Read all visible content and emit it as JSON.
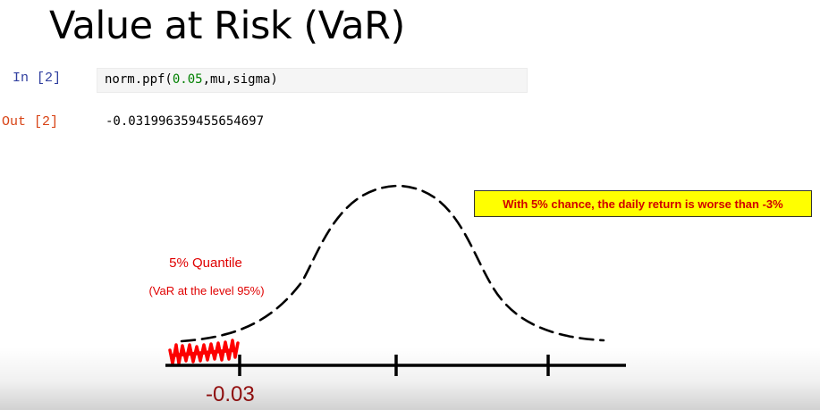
{
  "slide": {
    "title": "Value at Risk (VaR)"
  },
  "notebook": {
    "input_prompt": "In [2]",
    "code_prefix": "norm.ppf(",
    "code_number": "0.05",
    "code_suffix": ",mu,sigma)",
    "output_prompt": "Out [2]",
    "output_value": "-0.031996359455654697"
  },
  "diagram": {
    "quantile_label": "5% Quantile",
    "var_label": "(VaR at the level 95%)",
    "axis_tick_label": "-0.03",
    "callout_text": "With 5% chance, the daily return is worse than -3%"
  },
  "colors": {
    "callout_background": "#ffff00",
    "callout_text": "#d00000",
    "annotation_red": "#e00000",
    "scribble": "#ff0000"
  }
}
